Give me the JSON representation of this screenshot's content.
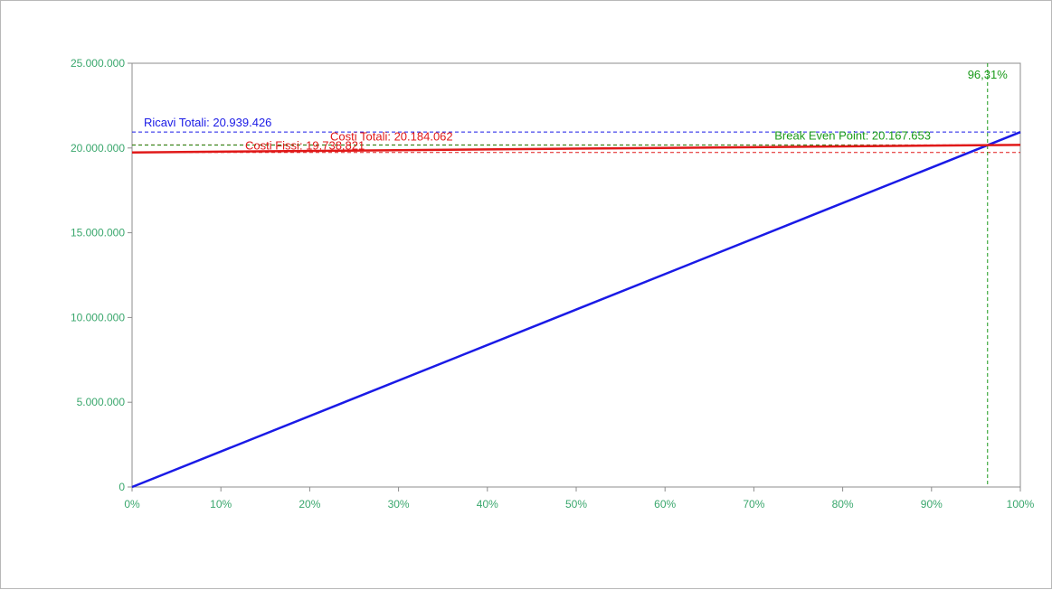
{
  "chart_data": {
    "type": "line",
    "title": "",
    "xlabel": "",
    "ylabel": "",
    "xlim": [
      0,
      100
    ],
    "ylim": [
      0,
      25000000
    ],
    "grid": false,
    "x_ticks": [
      "0%",
      "10%",
      "20%",
      "30%",
      "40%",
      "50%",
      "60%",
      "70%",
      "80%",
      "90%",
      "100%"
    ],
    "y_ticks": [
      "0",
      "5.000.000",
      "10.000.000",
      "15.000.000",
      "20.000.000",
      "25.000.000"
    ],
    "x_tick_values": [
      0,
      10,
      20,
      30,
      40,
      50,
      60,
      70,
      80,
      90,
      100
    ],
    "y_tick_values": [
      0,
      5000000,
      10000000,
      15000000,
      20000000,
      25000000
    ],
    "series": [
      {
        "key": "ricavi",
        "x": [
          0,
          100
        ],
        "y": [
          0,
          20939426
        ],
        "color": "#1a1ae6",
        "style": "solid"
      },
      {
        "key": "costi_totali",
        "x": [
          0,
          100
        ],
        "y": [
          19738821,
          20184062
        ],
        "color": "#e01919",
        "style": "solid"
      }
    ],
    "reference_lines": [
      {
        "key": "ricavi_totali",
        "axis": "y",
        "value": 20939426,
        "color": "#1a1ae6",
        "style": "dashed",
        "label": "Ricavi Totali: 20.939.426"
      },
      {
        "key": "costi_totali",
        "axis": "y",
        "value": 20184062,
        "color": "#e01919",
        "style": "dashed",
        "label": "Costi Totali: 20.184.062"
      },
      {
        "key": "costi_fissi",
        "axis": "y",
        "value": 19738821,
        "color": "#e01919",
        "style": "dashed",
        "label": "Costi Fissi: 19.738.821"
      },
      {
        "key": "break_even",
        "axis": "y",
        "value": 20167653,
        "color": "#1a9a1a",
        "style": "dashed",
        "label": "Break Even Point: 20.167.653"
      },
      {
        "key": "break_even_pct",
        "axis": "x",
        "value": 96.31,
        "color": "#1a9a1a",
        "style": "dashed",
        "label": "96,31%"
      }
    ]
  }
}
